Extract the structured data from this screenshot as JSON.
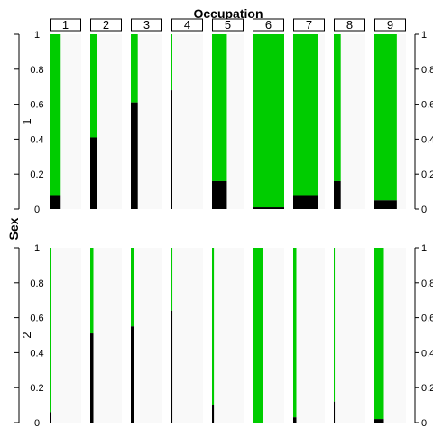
{
  "chart_data": {
    "type": "bar",
    "title": "Occupation",
    "ylabel": "Sex",
    "row_axis_labels": [
      "1",
      "2"
    ],
    "categories": [
      "1",
      "2",
      "3",
      "4",
      "5",
      "6",
      "7",
      "8",
      "9"
    ],
    "ylim": [
      0,
      1
    ],
    "y_ticks": [
      "0",
      "0.2",
      "0.4",
      "0.6",
      "0.8",
      "1"
    ],
    "colors": {
      "black_segment": "#000000",
      "green_segment": "#00cc00",
      "empty_area": "#f9f9f9"
    },
    "panels": [
      {
        "row": "1",
        "black_fraction": [
          0.08,
          0.41,
          0.61,
          0.68,
          0.16,
          0.01,
          0.08,
          0.16,
          0.05
        ],
        "column_width_fraction": [
          0.35,
          0.22,
          0.22,
          0.02,
          0.47,
          1.0,
          0.8,
          0.22,
          0.71
        ]
      },
      {
        "row": "2",
        "black_fraction": [
          0.06,
          0.51,
          0.55,
          0.64,
          0.1,
          0.0,
          0.03,
          0.12,
          0.02
        ],
        "column_width_fraction": [
          0.05,
          0.1,
          0.1,
          0.03,
          0.06,
          0.32,
          0.1,
          0.03,
          0.3
        ]
      }
    ]
  }
}
